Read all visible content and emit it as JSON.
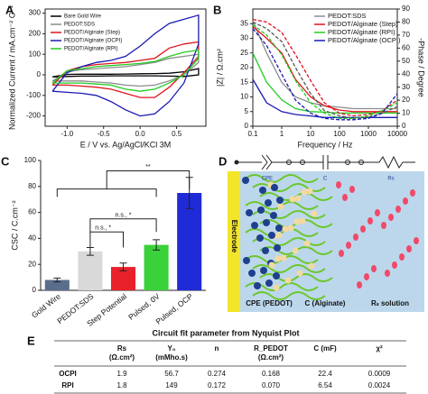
{
  "chart_data": [
    {
      "type": "line",
      "label": "A",
      "xlabel": "E / V vs. Ag/AgCl/KCl 3M",
      "ylabel": "Normalized Current / mA.cm⁻² C⁻¹",
      "x": [
        -1.2,
        -1.0,
        -0.8,
        -0.6,
        -0.4,
        -0.2,
        0,
        0.2,
        0.4,
        0.6,
        0.8,
        0.8,
        0.6,
        0.4,
        0.2,
        0,
        -0.2,
        -0.4,
        -0.6,
        -0.8,
        -1.0,
        -1.2
      ],
      "xlim": [
        -1.3,
        0.9
      ],
      "xticks": [
        {
          "value": -1,
          "label": "-1.0"
        },
        -0.5,
        {
          "value": 0,
          "label": "0.0"
        },
        0.5
      ],
      "ylim": [
        -250,
        320
      ],
      "yticks": [
        -200,
        -100,
        0,
        100,
        200,
        300
      ],
      "legend": "upper left",
      "series": [
        {
          "name": "Bare Gold Wire",
          "color": "#000000",
          "values": [
            -10,
            2,
            3,
            3,
            3,
            4,
            5,
            6,
            8,
            15,
            30,
            0,
            -8,
            -6,
            -5,
            -5,
            -5,
            -5,
            -6,
            -6,
            -8,
            -10
          ]
        },
        {
          "name": "PEDOT:SDS",
          "color": "#8c8c8c",
          "values": [
            -30,
            15,
            25,
            30,
            35,
            40,
            50,
            60,
            80,
            90,
            100,
            60,
            0,
            -30,
            -50,
            -55,
            -50,
            -40,
            -35,
            -30,
            -30,
            -30
          ]
        },
        {
          "name": "PEDOT/Alginate (Step)",
          "color": "#e0141e",
          "values": [
            -50,
            20,
            40,
            50,
            55,
            60,
            70,
            80,
            130,
            150,
            160,
            90,
            10,
            -60,
            -110,
            -110,
            -90,
            -70,
            -60,
            -55,
            -50,
            -50
          ]
        },
        {
          "name": "PEDOT/Alginate (OCPI)",
          "color": "#1a1ab4",
          "values": [
            -80,
            10,
            40,
            60,
            70,
            90,
            140,
            200,
            250,
            270,
            290,
            150,
            -40,
            -130,
            -190,
            -200,
            -170,
            -130,
            -100,
            -90,
            -85,
            -80
          ]
        },
        {
          "name": "PEDOT/Alginate (RPI)",
          "color": "#22cc22",
          "values": [
            -40,
            20,
            30,
            40,
            45,
            50,
            55,
            65,
            90,
            110,
            120,
            80,
            0,
            -40,
            -70,
            -80,
            -70,
            -50,
            -45,
            -40,
            -40,
            -40
          ]
        }
      ]
    },
    {
      "type": "line",
      "label": "B",
      "log_x": true,
      "xlabel": "Frequency / Hz",
      "ylabel": "|Z| / Ω.cm²",
      "y2label": "-Phase / Degree",
      "x": [
        0.1,
        0.3,
        1,
        3,
        10,
        30,
        100,
        300,
        1000,
        3000,
        10000
      ],
      "xlim": [
        0.1,
        10000
      ],
      "xticks": [
        0.1,
        1,
        10,
        100,
        1000,
        10000
      ],
      "ylim": [
        0,
        40
      ],
      "yticks": [
        0,
        5,
        10,
        15,
        20,
        25,
        30,
        35
      ],
      "y2lim": [
        0,
        90
      ],
      "y2ticks": [
        0,
        10,
        20,
        30,
        40,
        50,
        60,
        70,
        80,
        90
      ],
      "legend": "upper right",
      "series": [
        {
          "name": "PEDOT:SDS",
          "color": "#8c8c8c",
          "values": [
            36,
            25,
            15,
            10,
            8,
            7,
            6.5,
            6,
            6,
            6,
            6
          ]
        },
        {
          "name": "PEDOT/Alginate (Step)",
          "color": "#e0141e",
          "values": [
            34,
            30,
            25,
            16,
            10,
            7,
            5.5,
            5,
            5,
            5,
            5
          ]
        },
        {
          "name": "PEDOT/Alginate (RPI)",
          "color": "#22cc22",
          "values": [
            25,
            15,
            9,
            6,
            5,
            4.8,
            4.5,
            4.5,
            4.5,
            4.5,
            4.5
          ]
        },
        {
          "name": "PEDOT/Alginate (OCPI)",
          "color": "#1a1ab4",
          "values": [
            16,
            8,
            5,
            4,
            3.5,
            3,
            3,
            3,
            3,
            3,
            3
          ]
        },
        {
          "color": "#555555",
          "axis": "y2",
          "dash": true,
          "values": [
            80,
            75,
            65,
            45,
            25,
            12,
            8,
            6,
            7,
            10,
            15
          ]
        },
        {
          "color": "#e0141e",
          "axis": "y2",
          "dash": true,
          "values": [
            82,
            80,
            72,
            55,
            35,
            18,
            10,
            8,
            9,
            12,
            20
          ]
        },
        {
          "color": "#22cc22",
          "axis": "y2",
          "dash": true,
          "values": [
            78,
            70,
            55,
            35,
            18,
            10,
            6,
            6,
            8,
            12,
            18
          ]
        },
        {
          "color": "#1a1ab4",
          "axis": "y2",
          "dash": true,
          "values": [
            75,
            62,
            40,
            20,
            10,
            6,
            5,
            5,
            6,
            10,
            25
          ]
        }
      ]
    },
    {
      "type": "bar",
      "label": "C",
      "ylabel": "CSC / C.cm⁻²",
      "categories": [
        "Gold Wire",
        "PEDOT:SDS",
        "Step Potential",
        "Pulsed, 0V",
        "Pulsed, OCP"
      ],
      "values": [
        8,
        30,
        18,
        35,
        75
      ],
      "errors": [
        1.5,
        3,
        3,
        4,
        12
      ],
      "colors": [
        "#5a6e8c",
        "#d9d9d9",
        "#e8212a",
        "#3ad13a",
        "#1f2bd6"
      ],
      "ylim": [
        0,
        100
      ],
      "yticks": [
        0,
        20,
        40,
        60,
        80,
        100
      ],
      "annotations": [
        "**",
        "n.s., *",
        "n.s., *"
      ]
    }
  ],
  "diagram": {
    "label": "D",
    "circuit": [
      "CPE",
      "C",
      "Rs"
    ],
    "electrode": "Electrode",
    "regions": [
      "CPE (PEDOT)",
      "C (Alginate)",
      "Rₛ solution"
    ]
  },
  "table": {
    "label": "E",
    "title": "Circuit fit parameter from Nyquist Plot",
    "header": [
      [
        "Rs",
        "(Ω.cm²)"
      ],
      [
        "Y₀",
        "(mMho.s)"
      ],
      [
        "n",
        ""
      ],
      [
        "R_PEDOT",
        "(Ω.cm²)"
      ],
      [
        "C (mF)",
        ""
      ],
      [
        "χ²",
        ""
      ]
    ],
    "rows": [
      [
        "OCPI",
        "1.9",
        "56.7",
        "0.274",
        "0.168",
        "22.4",
        "0.0009"
      ],
      [
        "RPI",
        "1.8",
        "149",
        "0.172",
        "0.070",
        "6.54",
        "0.0024"
      ]
    ]
  }
}
